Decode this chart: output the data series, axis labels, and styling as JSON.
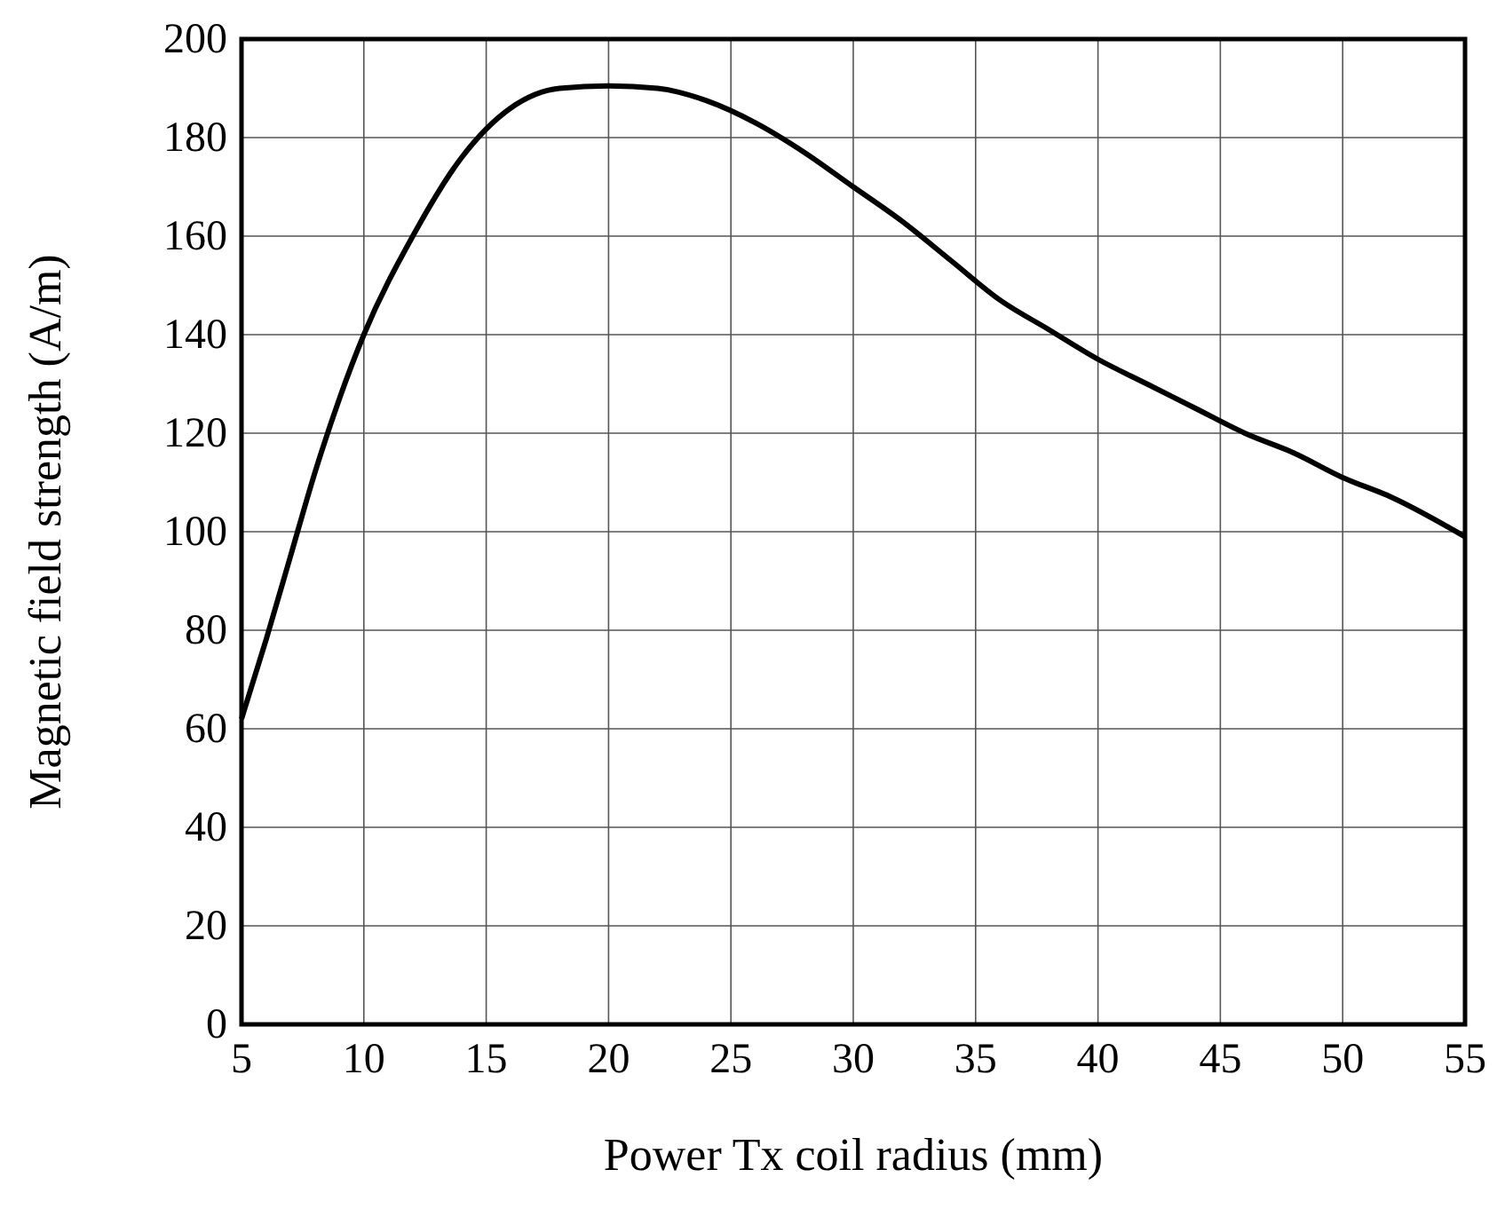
{
  "chart_data": {
    "type": "line",
    "xlabel": "Power Tx coil radius (mm)",
    "ylabel": "Magnetic field strength (A/m)",
    "xlim": [
      5,
      55
    ],
    "xticks": [
      5,
      10,
      15,
      20,
      25,
      30,
      35,
      40,
      45,
      50,
      55
    ],
    "ylim": [
      0,
      200
    ],
    "yticks": [
      0,
      20,
      40,
      60,
      80,
      100,
      120,
      140,
      160,
      180,
      200
    ],
    "grid": true,
    "marker": "none",
    "line_style": "solid",
    "series": [
      {
        "color": "#000000",
        "x": [
          5,
          6,
          7,
          8,
          9,
          10,
          12,
          14,
          16,
          18,
          20,
          22,
          24,
          26,
          28,
          30,
          32,
          34,
          36,
          38,
          40,
          42,
          44,
          46,
          48,
          50,
          52,
          55
        ],
        "values": [
          62,
          78,
          95,
          112,
          127,
          140,
          160,
          176,
          186,
          190,
          190.5,
          190,
          187.5,
          183,
          177,
          170,
          163,
          155,
          147,
          141,
          135,
          130,
          125,
          120,
          116,
          111,
          107,
          99
        ]
      }
    ]
  }
}
